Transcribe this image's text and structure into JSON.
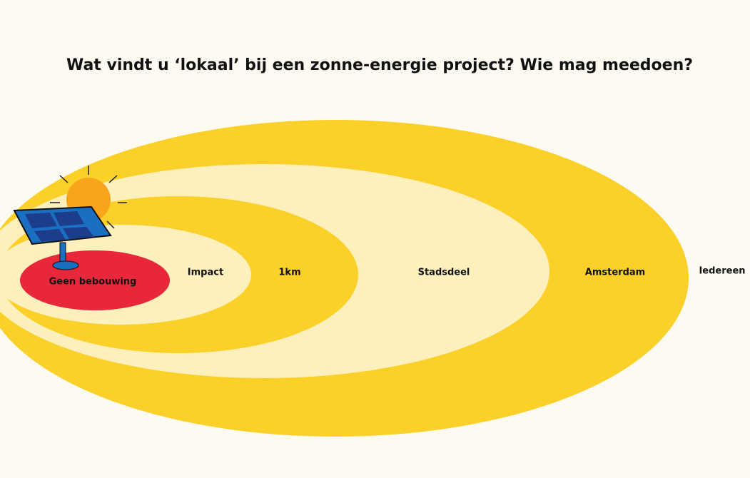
{
  "title": "Wat vindt u ‘lokaal’ bij een zonne-energie project? Wie mag meedoen?",
  "zones": [
    {
      "label": "Geen bebouwing"
    },
    {
      "label": "Impact"
    },
    {
      "label": "1km"
    },
    {
      "label": "Stadsdeel"
    },
    {
      "label": "Amsterdam"
    },
    {
      "label": "Iedereen"
    }
  ]
}
